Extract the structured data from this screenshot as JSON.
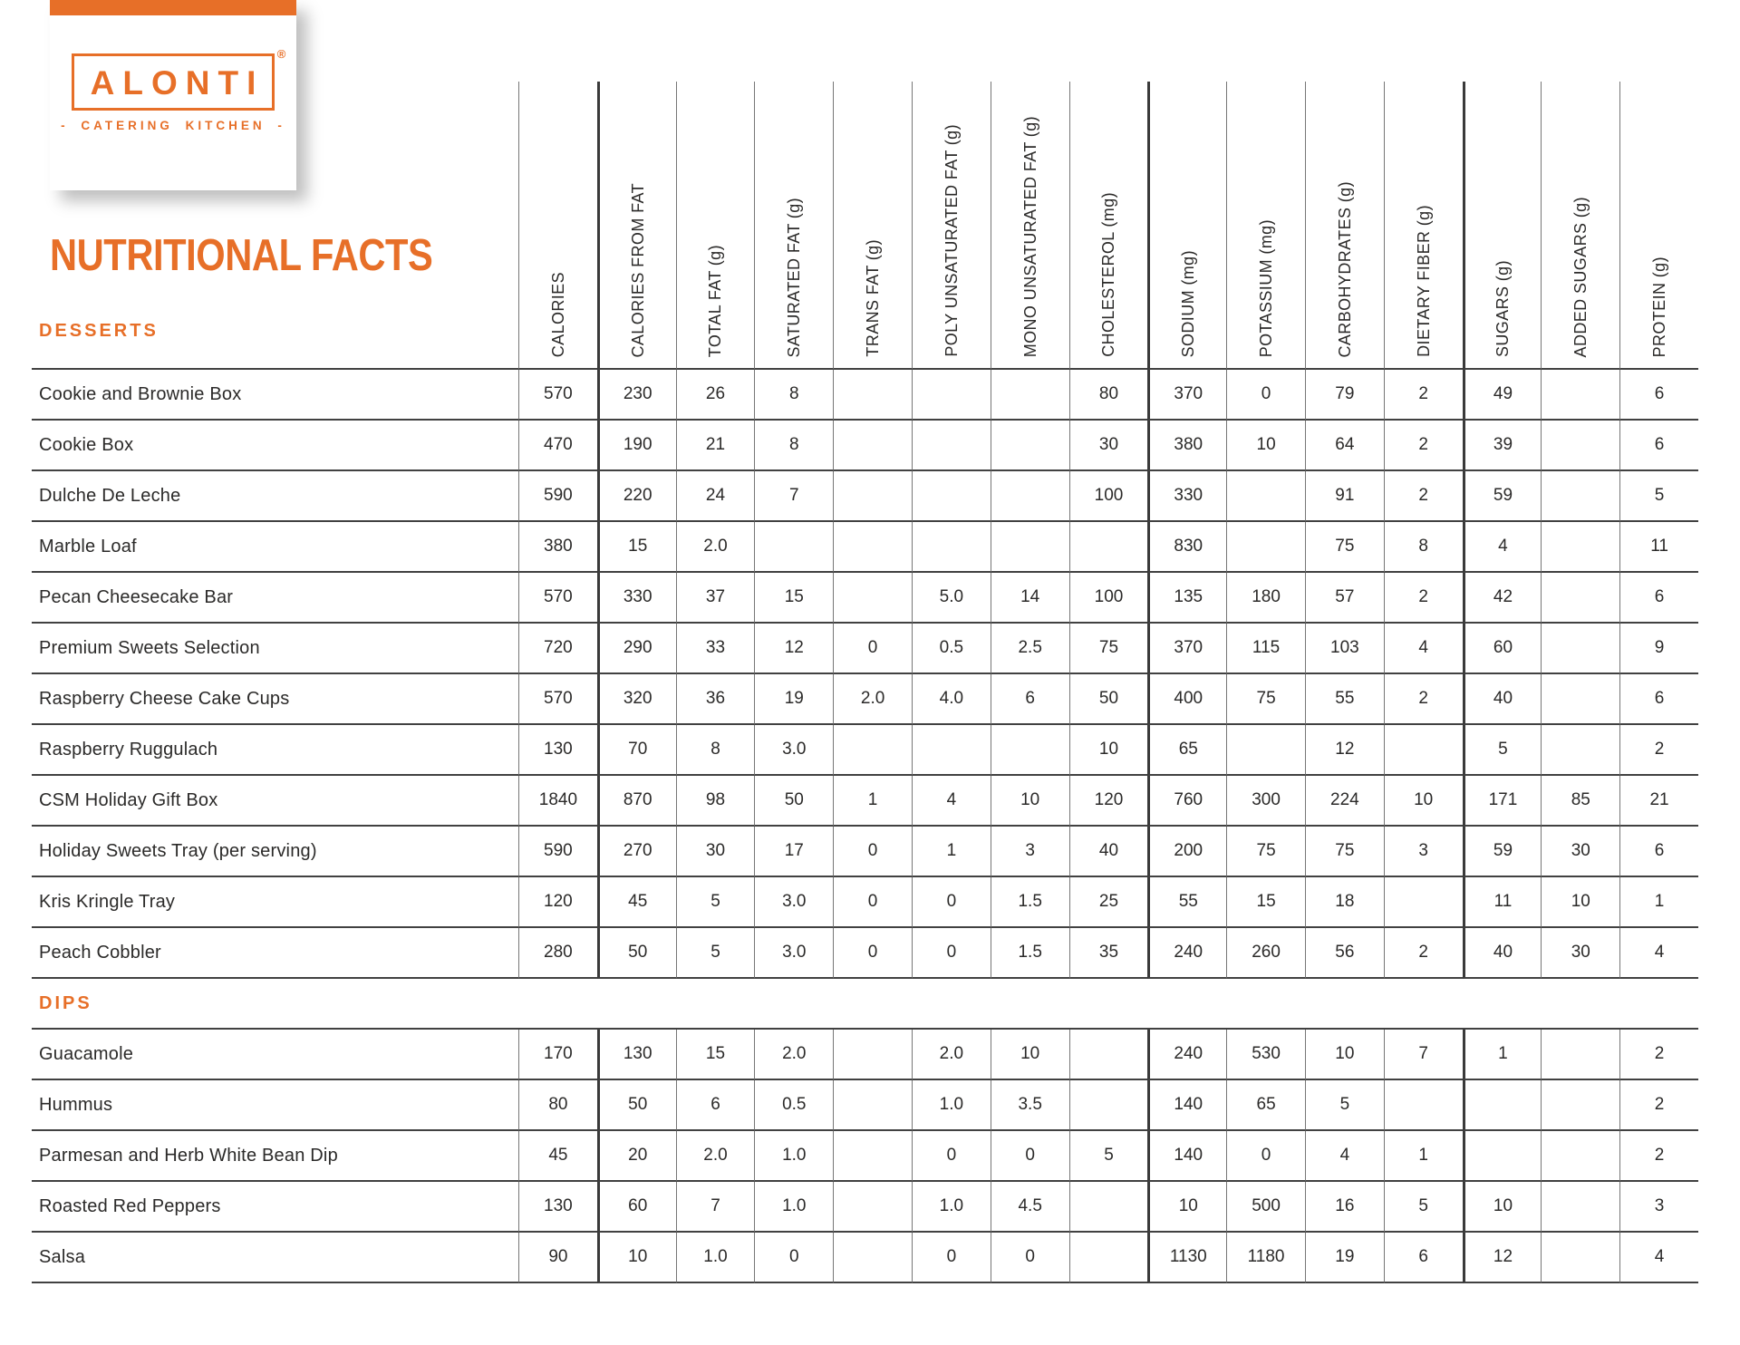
{
  "logo": {
    "brand": "ALONTI",
    "registered": "®",
    "tagline": "- CATERING KITCHEN -"
  },
  "page": {
    "title": "NUTRITIONAL FACTS"
  },
  "colors": {
    "accent": "#E76F28",
    "grid_line": "#414141"
  },
  "columns": [
    "CALORIES",
    "CALORIES FROM FAT",
    "TOTAL FAT (g)",
    "SATURATED FAT (g)",
    "TRANS FAT (g)",
    "POLY UNSATURATED FAT (g)",
    "MONO UNSATURATED FAT (g)",
    "CHOLESTEROL (mg)",
    "SODIUM (mg)",
    "POTASSIUM (mg)",
    "CARBOHYDRATES (g)",
    "DIETARY FIBER (g)",
    "SUGARS (g)",
    "ADDED SUGARS (g)",
    "PROTEIN (g)"
  ],
  "sections": [
    {
      "name": "DESSERTS",
      "rows": [
        {
          "item": "Cookie and Brownie Box",
          "values": [
            "570",
            "230",
            "26",
            "8",
            "",
            "",
            "",
            "80",
            "370",
            "0",
            "79",
            "2",
            "49",
            "",
            "6"
          ]
        },
        {
          "item": "Cookie Box",
          "values": [
            "470",
            "190",
            "21",
            "8",
            "",
            "",
            "",
            "30",
            "380",
            "10",
            "64",
            "2",
            "39",
            "",
            "6"
          ]
        },
        {
          "item": "Dulche De Leche",
          "values": [
            "590",
            "220",
            "24",
            "7",
            "",
            "",
            "",
            "100",
            "330",
            "",
            "91",
            "2",
            "59",
            "",
            "5"
          ]
        },
        {
          "item": "Marble Loaf",
          "values": [
            "380",
            "15",
            "2.0",
            "",
            "",
            "",
            "",
            "",
            "830",
            "",
            "75",
            "8",
            "4",
            "",
            "11"
          ]
        },
        {
          "item": "Pecan Cheesecake Bar",
          "values": [
            "570",
            "330",
            "37",
            "15",
            "",
            "5.0",
            "14",
            "100",
            "135",
            "180",
            "57",
            "2",
            "42",
            "",
            "6"
          ]
        },
        {
          "item": "Premium Sweets Selection",
          "values": [
            "720",
            "290",
            "33",
            "12",
            "0",
            "0.5",
            "2.5",
            "75",
            "370",
            "115",
            "103",
            "4",
            "60",
            "",
            "9"
          ]
        },
        {
          "item": "Raspberry Cheese Cake Cups",
          "values": [
            "570",
            "320",
            "36",
            "19",
            "2.0",
            "4.0",
            "6",
            "50",
            "400",
            "75",
            "55",
            "2",
            "40",
            "",
            "6"
          ]
        },
        {
          "item": "Raspberry Ruggulach",
          "values": [
            "130",
            "70",
            "8",
            "3.0",
            "",
            "",
            "",
            "10",
            "65",
            "",
            "12",
            "",
            "5",
            "",
            "2"
          ]
        },
        {
          "item": "CSM Holiday Gift Box",
          "values": [
            "1840",
            "870",
            "98",
            "50",
            "1",
            "4",
            "10",
            "120",
            "760",
            "300",
            "224",
            "10",
            "171",
            "85",
            "21"
          ]
        },
        {
          "item": "Holiday Sweets Tray (per serving)",
          "values": [
            "590",
            "270",
            "30",
            "17",
            "0",
            "1",
            "3",
            "40",
            "200",
            "75",
            "75",
            "3",
            "59",
            "30",
            "6"
          ]
        },
        {
          "item": "Kris Kringle Tray",
          "values": [
            "120",
            "45",
            "5",
            "3.0",
            "0",
            "0",
            "1.5",
            "25",
            "55",
            "15",
            "18",
            "",
            "11",
            "10",
            "1"
          ]
        },
        {
          "item": "Peach Cobbler",
          "values": [
            "280",
            "50",
            "5",
            "3.0",
            "0",
            "0",
            "1.5",
            "35",
            "240",
            "260",
            "56",
            "2",
            "40",
            "30",
            "4"
          ]
        }
      ]
    },
    {
      "name": "DIPS",
      "rows": [
        {
          "item": "Guacamole",
          "values": [
            "170",
            "130",
            "15",
            "2.0",
            "",
            "2.0",
            "10",
            "",
            "240",
            "530",
            "10",
            "7",
            "1",
            "",
            "2"
          ]
        },
        {
          "item": "Hummus",
          "values": [
            "80",
            "50",
            "6",
            "0.5",
            "",
            "1.0",
            "3.5",
            "",
            "140",
            "65",
            "5",
            "",
            "",
            "",
            "2"
          ]
        },
        {
          "item": "Parmesan and Herb White Bean Dip",
          "values": [
            "45",
            "20",
            "2.0",
            "1.0",
            "",
            "0",
            "0",
            "5",
            "140",
            "0",
            "4",
            "1",
            "",
            "",
            "2"
          ]
        },
        {
          "item": "Roasted Red Peppers",
          "values": [
            "130",
            "60",
            "7",
            "1.0",
            "",
            "1.0",
            "4.5",
            "",
            "10",
            "500",
            "16",
            "5",
            "10",
            "",
            "3"
          ]
        },
        {
          "item": "Salsa",
          "values": [
            "90",
            "10",
            "1.0",
            "0",
            "",
            "0",
            "0",
            "",
            "1130",
            "1180",
            "19",
            "6",
            "12",
            "",
            "4"
          ]
        }
      ]
    }
  ]
}
